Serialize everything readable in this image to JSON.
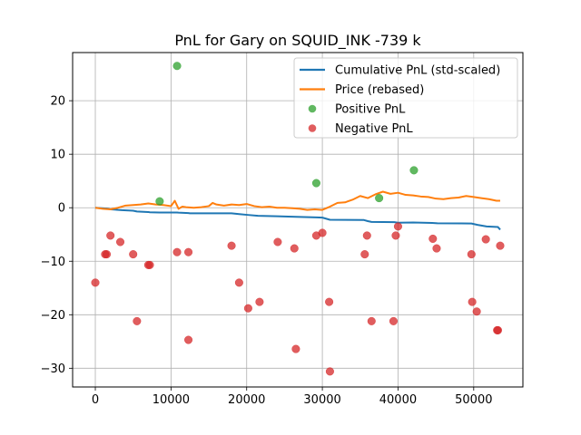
{
  "chart_data": {
    "type": "line+scatter",
    "title": "PnL for Gary on SQUID_INK -739 k",
    "xlabel": "",
    "ylabel": "",
    "xlim": [
      -3000,
      56500
    ],
    "ylim": [
      -33.5,
      29
    ],
    "x_ticks": [
      0,
      10000,
      20000,
      30000,
      40000,
      50000
    ],
    "y_ticks": [
      -30,
      -20,
      -10,
      0,
      10,
      20
    ],
    "grid": true,
    "legend_position": "upper-right",
    "colors": {
      "cumulative": "#1f77b4",
      "price": "#ff7f0e",
      "positive": "#2ca02c",
      "negative": "#d62728"
    },
    "legend": [
      {
        "label": "Cumulative PnL (std-scaled)",
        "kind": "line",
        "color": "#1f77b4"
      },
      {
        "label": "Price (rebased)",
        "kind": "line",
        "color": "#ff7f0e"
      },
      {
        "label": "Positive PnL",
        "kind": "marker",
        "color": "#2ca02c"
      },
      {
        "label": "Negative PnL",
        "kind": "marker",
        "color": "#d62728"
      }
    ],
    "series": [
      {
        "name": "Cumulative PnL (std-scaled)",
        "kind": "line",
        "x": [
          0,
          1500,
          2000,
          3500,
          5000,
          5500,
          7000,
          7200,
          8500,
          10800,
          11000,
          12300,
          12500,
          18000,
          19000,
          20200,
          21500,
          24000,
          26500,
          29200,
          30000,
          31000,
          35500,
          36000,
          36500,
          39500,
          40000,
          42000,
          44500,
          45200,
          49700,
          50500,
          51700,
          53200,
          53500
        ],
        "y": [
          0,
          -0.15,
          -0.3,
          -0.45,
          -0.55,
          -0.7,
          -0.8,
          -0.85,
          -0.9,
          -0.9,
          -0.92,
          -1.0,
          -1.05,
          -1.05,
          -1.2,
          -1.35,
          -1.5,
          -1.6,
          -1.7,
          -1.8,
          -1.85,
          -2.25,
          -2.3,
          -2.5,
          -2.65,
          -2.7,
          -2.8,
          -2.75,
          -2.85,
          -2.9,
          -2.95,
          -3.2,
          -3.5,
          -3.6,
          -4.1
        ]
      },
      {
        "name": "Price (rebased)",
        "kind": "line",
        "x": [
          0,
          1000,
          2000,
          3000,
          4000,
          5000,
          6000,
          7000,
          8000,
          9000,
          10000,
          10500,
          11000,
          11500,
          12000,
          13000,
          14000,
          15000,
          15500,
          16000,
          17000,
          18000,
          19000,
          20000,
          21000,
          22000,
          23000,
          24000,
          25000,
          26000,
          27000,
          28000,
          29000,
          30000,
          31000,
          32000,
          33000,
          34000,
          35000,
          36000,
          37000,
          38000,
          39000,
          40000,
          41000,
          42000,
          43000,
          44000,
          45000,
          46000,
          47000,
          48000,
          49000,
          50000,
          51000,
          52000,
          53000,
          53500
        ],
        "y": [
          0,
          -0.2,
          -0.3,
          0,
          0.4,
          0.5,
          0.6,
          0.8,
          0.6,
          0.5,
          0.3,
          1.3,
          -0.2,
          0.2,
          0.1,
          0.0,
          0.1,
          0.3,
          0.9,
          0.6,
          0.4,
          0.6,
          0.5,
          0.7,
          0.3,
          0.1,
          0.2,
          0.0,
          0.0,
          -0.1,
          -0.2,
          -0.4,
          -0.3,
          -0.4,
          0.2,
          0.9,
          1.0,
          1.5,
          2.2,
          1.8,
          2.5,
          3.0,
          2.6,
          2.8,
          2.4,
          2.3,
          2.1,
          2.0,
          1.7,
          1.6,
          1.8,
          1.9,
          2.2,
          2.0,
          1.8,
          1.6,
          1.3,
          1.3
        ]
      },
      {
        "name": "Positive PnL",
        "kind": "scatter",
        "x": [
          8500,
          10800,
          29200,
          37500,
          42100
        ],
        "y": [
          1.2,
          26.5,
          4.6,
          1.8,
          7.0
        ]
      },
      {
        "name": "Negative PnL",
        "kind": "scatter",
        "x": [
          0,
          1300,
          1500,
          2000,
          3300,
          5000,
          5500,
          7000,
          7200,
          10800,
          12300,
          12300,
          18000,
          19000,
          20200,
          21700,
          24100,
          26300,
          26500,
          29200,
          30000,
          30900,
          31000,
          35600,
          35900,
          36500,
          39400,
          39700,
          40000,
          44600,
          45100,
          49700,
          49800,
          50400,
          51600,
          53100,
          53200,
          53500
        ],
        "y": [
          -14.0,
          -8.7,
          -8.7,
          -5.2,
          -6.4,
          -8.7,
          -21.2,
          -10.7,
          -10.7,
          -8.3,
          -24.7,
          -8.3,
          -7.1,
          -14.0,
          -18.8,
          -17.6,
          -6.4,
          -7.6,
          -26.4,
          -5.2,
          -4.7,
          -17.6,
          -30.6,
          -8.7,
          -5.2,
          -21.2,
          -21.2,
          -5.2,
          -3.5,
          -5.8,
          -7.6,
          -8.7,
          -17.6,
          -19.4,
          -5.9,
          -22.9,
          -22.9,
          -7.1
        ]
      }
    ]
  }
}
